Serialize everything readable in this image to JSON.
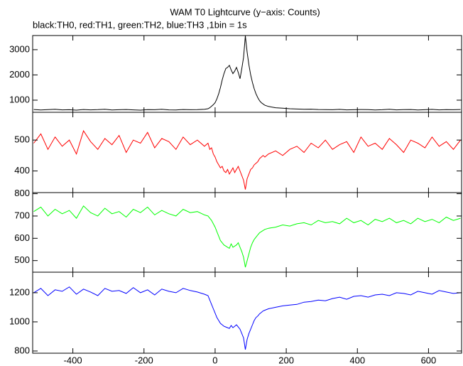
{
  "chart_data": {
    "type": "line",
    "title": "WAM T0 Lightcurve (y−axis: Counts)",
    "subtitle": "black:TH0, red:TH1, green:TH2, blue:TH3 ,1bin = 1s",
    "xlim": [
      -513,
      693
    ],
    "xticks": [
      -400,
      -200,
      0,
      200,
      400,
      600
    ],
    "x": [
      -510,
      -490,
      -470,
      -450,
      -430,
      -410,
      -390,
      -370,
      -350,
      -330,
      -310,
      -290,
      -270,
      -250,
      -230,
      -210,
      -190,
      -170,
      -150,
      -130,
      -110,
      -90,
      -70,
      -50,
      -30,
      -20,
      -15,
      -10,
      -5,
      0,
      5,
      10,
      15,
      20,
      25,
      30,
      35,
      40,
      45,
      50,
      55,
      60,
      65,
      70,
      75,
      80,
      85,
      90,
      95,
      100,
      105,
      110,
      115,
      120,
      125,
      130,
      135,
      140,
      150,
      170,
      190,
      210,
      230,
      250,
      270,
      290,
      310,
      330,
      350,
      370,
      390,
      410,
      430,
      450,
      470,
      490,
      510,
      530,
      550,
      570,
      590,
      610,
      630,
      650,
      670,
      690
    ],
    "series": [
      {
        "color": "#000000",
        "ylim": [
          520,
          3560
        ],
        "yticks": [
          1000,
          2000,
          3000
        ],
        "values": [
          630,
          610,
          625,
          640,
          615,
          620,
          605,
          630,
          615,
          625,
          640,
          610,
          620,
          630,
          615,
          605,
          625,
          620,
          640,
          615,
          610,
          630,
          620,
          625,
          640,
          660,
          700,
          760,
          820,
          900,
          1050,
          1250,
          1500,
          1800,
          2050,
          2250,
          2300,
          2380,
          2200,
          2050,
          2150,
          2300,
          2100,
          1850,
          2250,
          2700,
          3550,
          2900,
          2400,
          2000,
          1700,
          1450,
          1250,
          1100,
          980,
          900,
          850,
          800,
          750,
          700,
          680,
          660,
          650,
          640,
          645,
          630,
          625,
          620,
          635,
          615,
          620,
          630,
          625,
          610,
          620,
          640,
          615,
          625,
          630,
          610,
          620,
          635,
          615,
          625,
          620,
          630
        ]
      },
      {
        "color": "#ff0000",
        "ylim": [
          330,
          590
        ],
        "yticks": [
          400,
          500
        ],
        "values": [
          490,
          520,
          470,
          510,
          480,
          500,
          455,
          530,
          495,
          470,
          505,
          485,
          515,
          460,
          500,
          490,
          525,
          475,
          505,
          495,
          470,
          510,
          485,
          500,
          480,
          490,
          470,
          475,
          455,
          445,
          430,
          420,
          410,
          415,
          400,
          395,
          405,
          390,
          400,
          410,
          395,
          405,
          415,
          400,
          385,
          370,
          340,
          375,
          390,
          405,
          410,
          420,
          425,
          430,
          440,
          445,
          450,
          445,
          455,
          465,
          450,
          470,
          480,
          460,
          490,
          475,
          500,
          470,
          485,
          495,
          460,
          510,
          480,
          490,
          470,
          505,
          485,
          460,
          500,
          490,
          475,
          510,
          480,
          495,
          470,
          500
        ]
      },
      {
        "color": "#00ff00",
        "ylim": [
          448,
          805
        ],
        "yticks": [
          500,
          600,
          700,
          800
        ],
        "values": [
          720,
          740,
          700,
          730,
          710,
          725,
          690,
          745,
          715,
          700,
          735,
          710,
          720,
          695,
          730,
          715,
          740,
          705,
          725,
          710,
          700,
          730,
          715,
          720,
          705,
          700,
          690,
          680,
          665,
          650,
          630,
          610,
          590,
          580,
          570,
          565,
          560,
          555,
          575,
          560,
          565,
          570,
          580,
          560,
          540,
          515,
          470,
          500,
          530,
          560,
          580,
          595,
          605,
          615,
          625,
          630,
          635,
          640,
          645,
          650,
          660,
          655,
          665,
          670,
          660,
          680,
          670,
          675,
          665,
          690,
          670,
          680,
          660,
          685,
          675,
          690,
          670,
          680,
          665,
          690,
          675,
          685,
          670,
          695,
          680,
          690
        ]
      },
      {
        "color": "#0000ff",
        "ylim": [
          785,
          1341
        ],
        "yticks": [
          800,
          1000,
          1200
        ],
        "values": [
          1200,
          1230,
          1180,
          1220,
          1210,
          1240,
          1190,
          1225,
          1205,
          1180,
          1230,
          1210,
          1215,
          1195,
          1235,
          1200,
          1220,
          1185,
          1225,
          1210,
          1200,
          1230,
          1215,
          1205,
          1190,
          1180,
          1150,
          1120,
          1090,
          1060,
          1030,
          1010,
          990,
          980,
          970,
          965,
          960,
          955,
          975,
          960,
          970,
          980,
          965,
          950,
          920,
          890,
          810,
          880,
          920,
          950,
          980,
          1010,
          1030,
          1040,
          1055,
          1065,
          1075,
          1080,
          1090,
          1100,
          1110,
          1115,
          1120,
          1135,
          1140,
          1150,
          1145,
          1160,
          1170,
          1155,
          1175,
          1180,
          1170,
          1185,
          1190,
          1180,
          1200,
          1195,
          1185,
          1210,
          1200,
          1190,
          1215,
          1205,
          1195,
          1200
        ]
      }
    ]
  }
}
